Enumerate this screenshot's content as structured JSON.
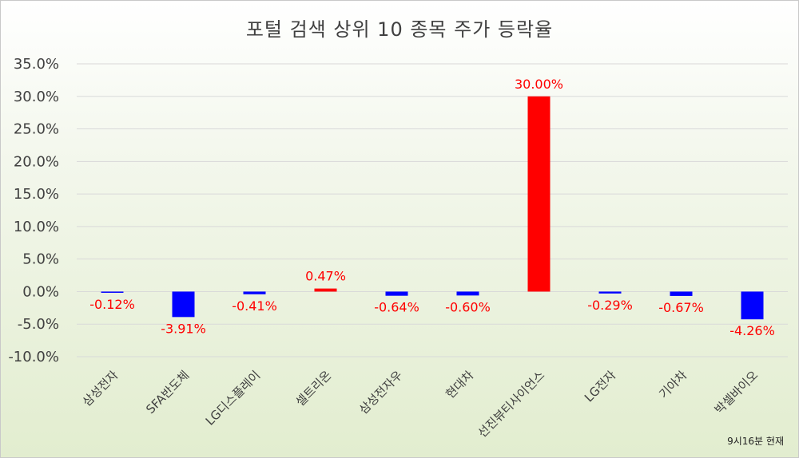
{
  "chart_data": {
    "type": "bar",
    "title": "포털 검색 상위 10 종목 주가 등락율",
    "categories": [
      "삼성전자",
      "SFA반도체",
      "LG디스플레이",
      "셀트리온",
      "삼성전자우",
      "현대차",
      "선진뷰티사이언스",
      "LG전자",
      "기아차",
      "박셀바이오"
    ],
    "values": [
      -0.12,
      -3.91,
      -0.41,
      0.47,
      -0.64,
      -0.6,
      30.0,
      -0.29,
      -0.67,
      -4.26
    ],
    "data_labels": [
      "-0.12%",
      "-3.91%",
      "-0.41%",
      "0.47%",
      "-0.64%",
      "-0.60%",
      "30.00%",
      "-0.29%",
      "-0.67%",
      "-4.26%"
    ],
    "ylim": [
      -10,
      35
    ],
    "yticks": [
      35,
      30,
      25,
      20,
      15,
      10,
      5,
      0,
      -5,
      -10
    ],
    "ytick_labels": [
      "35.0%",
      "30.0%",
      "25.0%",
      "20.0%",
      "15.0%",
      "10.0%",
      "5.0%",
      "0.0%",
      "-5.0%",
      "-10.0%"
    ],
    "grid": true,
    "colors": {
      "positive": "#ff0000",
      "negative": "#0000ff",
      "label": "#ff0000",
      "grid": "#d9d9d9",
      "tick_text": "#404040"
    }
  },
  "footer": {
    "timestamp": "9시16분 현재"
  }
}
